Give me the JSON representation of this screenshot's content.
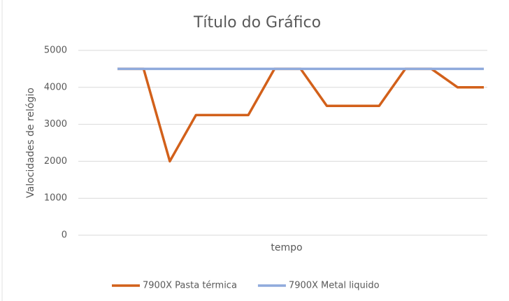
{
  "chart_data": {
    "type": "line",
    "title": "Título do Gráfico",
    "x_label": "tempo",
    "y_label": "Valocidades de relógio",
    "categories": [
      null,
      null,
      null,
      null,
      null,
      null,
      null,
      null,
      null,
      null,
      null,
      null,
      null,
      null,
      null
    ],
    "series": [
      {
        "name": "7900X Pasta térmica",
        "color": "#d2601a",
        "values": [
          4500,
          4500,
          2000,
          3250,
          3250,
          3250,
          4500,
          4500,
          3500,
          3500,
          3500,
          4500,
          4500,
          4000,
          4000
        ]
      },
      {
        "name": "7900X Metal liquido",
        "color": "#8faadc",
        "values": [
          4500,
          4500,
          4500,
          4500,
          4500,
          4500,
          4500,
          4500,
          4500,
          4500,
          4500,
          4500,
          4500,
          4500,
          4500
        ]
      }
    ],
    "ylim": [
      0,
      5000
    ],
    "yticks": [
      0,
      1000,
      2000,
      3000,
      4000,
      5000
    ],
    "grid": true,
    "legend": "bottom"
  }
}
